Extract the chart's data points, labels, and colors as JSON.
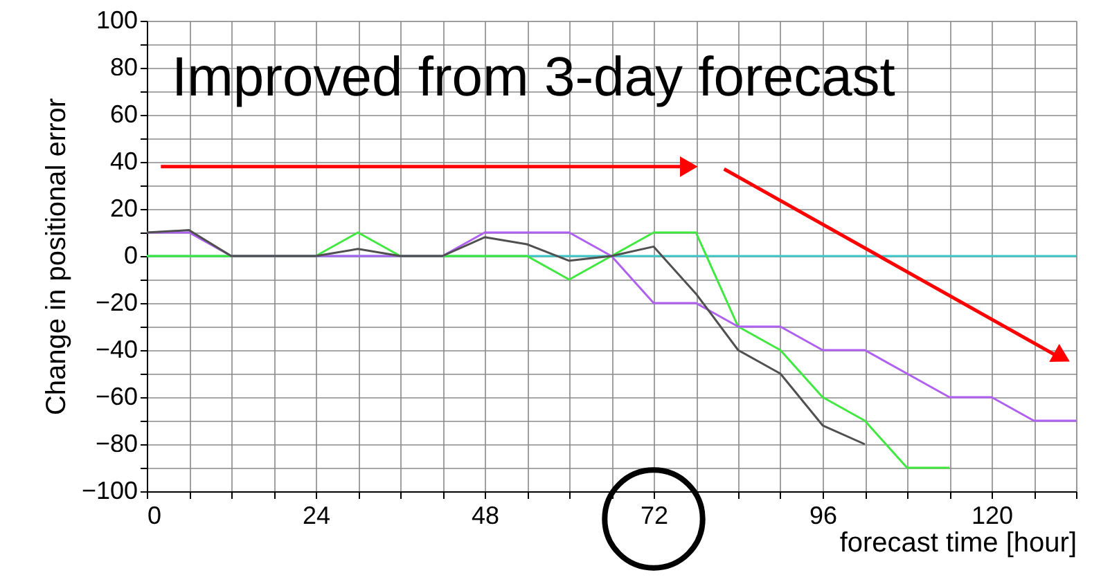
{
  "chart_data": {
    "type": "line",
    "ylabel": "Change in positional error",
    "xlabel": "forecast time [hour]",
    "annotations": [
      "Improved from 3-day forecast"
    ],
    "xlim": [
      0,
      132
    ],
    "ylim": [
      -100,
      100
    ],
    "xticks": [
      0,
      {
        "value": 6,
        "label": null
      },
      {
        "value": 12,
        "label": null
      },
      {
        "value": 18,
        "label": null
      },
      24,
      {
        "value": 30,
        "label": null
      },
      {
        "value": 36,
        "label": null
      },
      {
        "value": 42,
        "label": null
      },
      48,
      {
        "value": 54,
        "label": null
      },
      {
        "value": 60,
        "label": null
      },
      {
        "value": 66,
        "label": null
      },
      72,
      {
        "value": 78,
        "label": null
      },
      {
        "value": 84,
        "label": null
      },
      {
        "value": 90,
        "label": null
      },
      96,
      {
        "value": 102,
        "label": null
      },
      {
        "value": 108,
        "label": null
      },
      {
        "value": 114,
        "label": null
      },
      120,
      {
        "value": 126,
        "label": null
      },
      {
        "value": 132,
        "label": null
      }
    ],
    "yticks": [
      -100,
      {
        "value": -90,
        "label": null
      },
      -80,
      {
        "value": -70,
        "label": null
      },
      -60,
      {
        "value": -50,
        "label": null
      },
      -40,
      {
        "value": -30,
        "label": null
      },
      -20,
      {
        "value": -10,
        "label": null
      },
      0,
      {
        "value": 10,
        "label": null
      },
      20,
      {
        "value": 30,
        "label": null
      },
      40,
      {
        "value": 50,
        "label": null
      },
      60,
      {
        "value": 70,
        "label": null
      },
      80,
      {
        "value": 90,
        "label": null
      },
      100
    ],
    "grid": true,
    "legend": false,
    "ref_lines": [
      {
        "axis": "y",
        "value": 0,
        "color": "#40c8c8"
      }
    ],
    "series": [
      {
        "color": "#40e840",
        "x": [
          0,
          6,
          12,
          18,
          24,
          30,
          36,
          42,
          48,
          54,
          60,
          66,
          72,
          78,
          84,
          90,
          96,
          102,
          108,
          114
        ],
        "values": [
          0,
          0,
          0,
          0,
          0,
          10,
          0,
          0,
          0,
          0,
          -10,
          0,
          10,
          10,
          -30,
          -40,
          -60,
          -70,
          -90,
          -90
        ]
      },
      {
        "color": "#b060f0",
        "x": [
          0,
          6,
          12,
          18,
          24,
          30,
          36,
          42,
          48,
          54,
          60,
          66,
          72,
          78,
          84,
          90,
          96,
          102,
          108,
          114,
          120,
          126,
          132
        ],
        "values": [
          10,
          10,
          0,
          0,
          0,
          0,
          0,
          0,
          10,
          10,
          10,
          0,
          -20,
          -20,
          -30,
          -30,
          -40,
          -40,
          -50,
          -60,
          -60,
          -70,
          -70
        ]
      },
      {
        "color": "#505050",
        "x": [
          0,
          6,
          12,
          18,
          24,
          30,
          36,
          42,
          48,
          54,
          60,
          66,
          72,
          78,
          84,
          90,
          96,
          102
        ],
        "values": [
          10,
          11,
          0,
          0,
          0,
          3,
          0,
          0,
          8,
          5,
          -2,
          0,
          4,
          -16,
          -40,
          -50,
          -72,
          -80
        ]
      }
    ]
  }
}
